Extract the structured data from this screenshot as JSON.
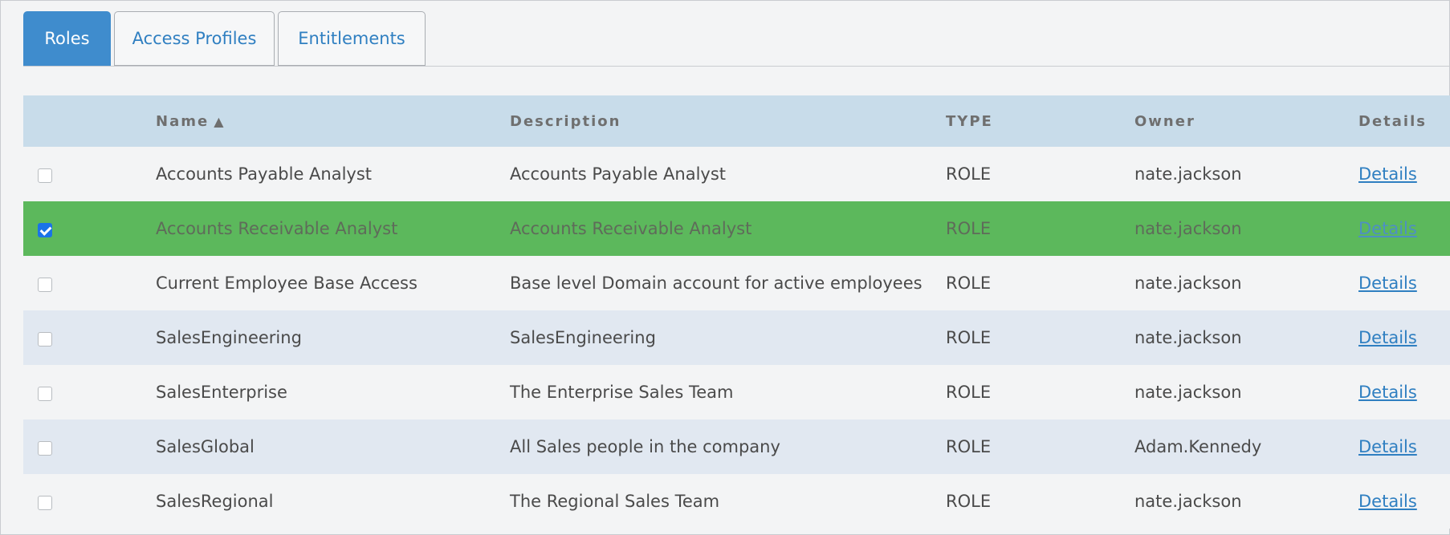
{
  "tabs": [
    {
      "label": "Roles",
      "active": true
    },
    {
      "label": "Access Profiles",
      "active": false
    },
    {
      "label": "Entitlements",
      "active": false
    }
  ],
  "table": {
    "headers": {
      "name": "Name",
      "sort_icon": "▲",
      "description": "Description",
      "type": "TYPE",
      "owner": "Owner",
      "details": "Details"
    },
    "rows": [
      {
        "name": "Accounts Payable Analyst",
        "description": "Accounts Payable Analyst",
        "type": "ROLE",
        "owner": "nate.jackson",
        "details": "Details",
        "checked": false
      },
      {
        "name": "Accounts Receivable Analyst",
        "description": "Accounts Receivable Analyst",
        "type": "ROLE",
        "owner": "nate.jackson",
        "details": "Details",
        "checked": true
      },
      {
        "name": "Current Employee Base Access",
        "description": "Base level Domain account for active employees",
        "type": "ROLE",
        "owner": "nate.jackson",
        "details": "Details",
        "checked": false
      },
      {
        "name": "SalesEngineering",
        "description": "SalesEngineering",
        "type": "ROLE",
        "owner": "nate.jackson",
        "details": "Details",
        "checked": false
      },
      {
        "name": "SalesEnterprise",
        "description": "The Enterprise Sales Team",
        "type": "ROLE",
        "owner": "nate.jackson",
        "details": "Details",
        "checked": false
      },
      {
        "name": "SalesGlobal",
        "description": "All Sales people in the company",
        "type": "ROLE",
        "owner": "Adam.Kennedy",
        "details": "Details",
        "checked": false
      },
      {
        "name": "SalesRegional",
        "description": "The Regional Sales Team",
        "type": "ROLE",
        "owner": "nate.jackson",
        "details": "Details",
        "checked": false
      }
    ]
  },
  "colors": {
    "accent": "#3f8ccd",
    "header_bg": "#c8dcea",
    "selected_row": "#5cb85c",
    "alt_row": "#e1e8f1",
    "link": "#2f7fc1"
  }
}
